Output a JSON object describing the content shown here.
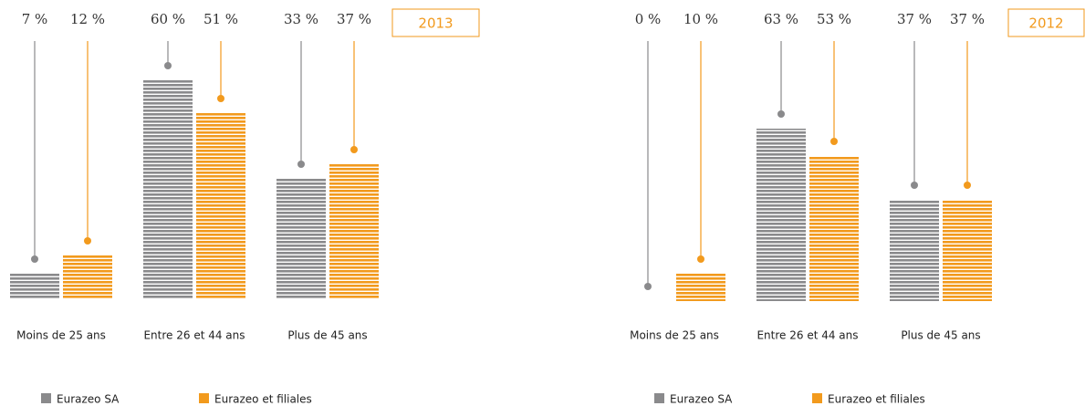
{
  "chart_data": [
    {
      "type": "bar",
      "title": "2013",
      "categories": [
        "Moins de 25 ans",
        "Entre 26 et 44 ans",
        "Plus de 45 ans"
      ],
      "series": [
        {
          "name": "Eurazeo SA",
          "color": "#8a8a8c",
          "values": [
            7,
            60,
            33
          ],
          "value_labels": [
            "7 %",
            "60 %",
            "33 %"
          ]
        },
        {
          "name": "Eurazeo et filiales",
          "color": "#f29a1d",
          "values": [
            12,
            51,
            37
          ],
          "value_labels": [
            "12 %",
            "51 %",
            "37 %"
          ]
        }
      ]
    },
    {
      "type": "bar",
      "title": "2012",
      "categories": [
        "Moins de 25 ans",
        "Entre 26 et 44 ans",
        "Plus de 45 ans"
      ],
      "series": [
        {
          "name": "Eurazeo SA",
          "color": "#8a8a8c",
          "values": [
            0,
            63,
            37
          ],
          "value_labels": [
            "0 %",
            "63 %",
            "37 %"
          ]
        },
        {
          "name": "Eurazeo et filiales",
          "color": "#f29a1d",
          "values": [
            10,
            53,
            37
          ],
          "value_labels": [
            "10 %",
            "53 %",
            "37 %"
          ]
        }
      ]
    }
  ]
}
